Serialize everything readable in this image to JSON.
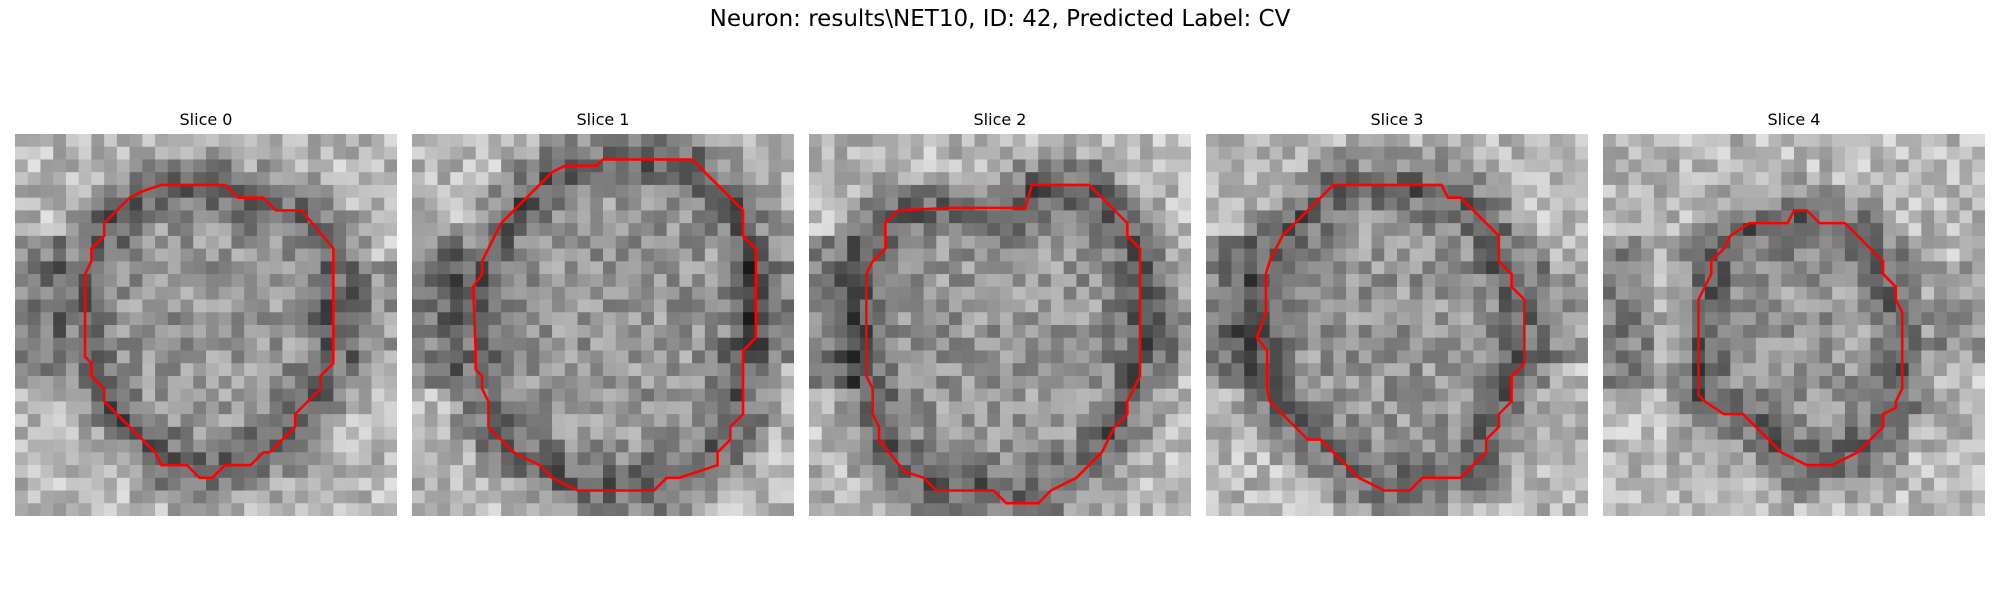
{
  "figure": {
    "title": "Neuron: results\\NET10, ID: 42, Predicted Label: CV"
  },
  "contour_color": "#ff0000",
  "grid_size": 30,
  "panels": [
    {
      "title": "Slice 0",
      "seed": 11,
      "contour": [
        [
          11.5,
          4
        ],
        [
          16.5,
          4
        ],
        [
          17.5,
          5
        ],
        [
          19.5,
          5
        ],
        [
          20.5,
          6
        ],
        [
          22.5,
          6
        ],
        [
          25,
          9
        ],
        [
          25,
          18
        ],
        [
          24,
          19
        ],
        [
          24,
          20
        ],
        [
          22,
          22
        ],
        [
          22,
          23
        ],
        [
          20,
          25
        ],
        [
          19.5,
          25
        ],
        [
          18.5,
          26
        ],
        [
          16.5,
          26
        ],
        [
          15.5,
          27
        ],
        [
          14.5,
          27
        ],
        [
          13.5,
          26
        ],
        [
          11.5,
          26
        ],
        [
          11,
          25
        ],
        [
          10,
          24
        ],
        [
          9,
          23
        ],
        [
          8,
          22
        ],
        [
          7,
          21
        ],
        [
          7,
          20
        ],
        [
          6,
          19
        ],
        [
          6,
          18
        ],
        [
          5.5,
          17.5
        ],
        [
          5.5,
          15
        ],
        [
          5.5,
          11
        ],
        [
          6,
          10
        ],
        [
          6,
          9
        ],
        [
          7,
          8
        ],
        [
          7,
          7
        ],
        [
          8,
          6
        ],
        [
          9,
          5
        ],
        [
          10,
          4.5
        ]
      ]
    },
    {
      "title": "Slice 1",
      "seed": 23,
      "contour": [
        [
          15,
          2
        ],
        [
          22,
          2
        ],
        [
          25,
          5
        ],
        [
          26,
          6
        ],
        [
          26,
          8
        ],
        [
          27,
          9
        ],
        [
          27,
          16
        ],
        [
          26,
          17
        ],
        [
          26,
          22
        ],
        [
          25,
          23
        ],
        [
          25,
          24
        ],
        [
          24,
          25
        ],
        [
          24,
          26
        ],
        [
          21,
          27
        ],
        [
          20,
          27
        ],
        [
          19,
          28
        ],
        [
          13,
          28
        ],
        [
          11,
          27
        ],
        [
          10,
          26
        ],
        [
          8,
          25
        ],
        [
          7,
          24
        ],
        [
          6,
          23
        ],
        [
          6,
          21
        ],
        [
          5.5,
          20
        ],
        [
          5.5,
          19
        ],
        [
          5,
          18.5
        ],
        [
          5,
          17
        ],
        [
          4.8,
          12
        ],
        [
          5.5,
          11
        ],
        [
          5.5,
          10
        ],
        [
          6,
          9
        ],
        [
          7,
          7
        ],
        [
          8,
          6
        ],
        [
          9,
          5
        ],
        [
          10,
          4
        ],
        [
          11,
          3
        ],
        [
          12,
          2.5
        ],
        [
          14.5,
          2.5
        ]
      ]
    },
    {
      "title": "Slice 2",
      "seed": 37,
      "contour": [
        [
          7,
          6
        ],
        [
          11,
          5.8
        ],
        [
          17,
          5.8
        ],
        [
          17.5,
          4
        ],
        [
          22,
          4
        ],
        [
          23,
          5
        ],
        [
          24,
          6
        ],
        [
          25,
          7
        ],
        [
          25,
          8
        ],
        [
          26,
          9
        ],
        [
          26,
          15
        ],
        [
          26,
          19
        ],
        [
          25,
          21
        ],
        [
          25,
          22
        ],
        [
          24,
          23
        ],
        [
          23,
          25
        ],
        [
          21,
          27
        ],
        [
          19,
          28
        ],
        [
          18,
          29
        ],
        [
          15.5,
          29
        ],
        [
          14.5,
          28
        ],
        [
          10,
          28
        ],
        [
          9,
          27
        ],
        [
          7.5,
          26.5
        ],
        [
          5.5,
          24
        ],
        [
          5.5,
          23
        ],
        [
          5,
          22
        ],
        [
          5,
          20
        ],
        [
          4.5,
          19
        ],
        [
          4.5,
          15
        ],
        [
          4.5,
          11
        ],
        [
          5,
          10
        ],
        [
          6,
          9
        ],
        [
          6,
          8
        ],
        [
          6,
          7
        ]
      ]
    },
    {
      "title": "Slice 3",
      "seed": 53,
      "contour": [
        [
          10,
          4
        ],
        [
          18.5,
          4
        ],
        [
          19,
          5
        ],
        [
          20,
          5
        ],
        [
          22,
          7
        ],
        [
          23,
          8
        ],
        [
          23,
          10
        ],
        [
          24,
          11
        ],
        [
          24,
          12
        ],
        [
          25,
          13
        ],
        [
          25,
          18
        ],
        [
          24,
          19
        ],
        [
          24,
          21
        ],
        [
          23,
          22
        ],
        [
          23,
          23
        ],
        [
          22,
          24
        ],
        [
          22,
          25
        ],
        [
          21,
          26
        ],
        [
          20,
          27
        ],
        [
          17,
          27
        ],
        [
          16,
          28
        ],
        [
          14,
          28
        ],
        [
          13,
          27.5
        ],
        [
          12,
          27
        ],
        [
          11,
          26
        ],
        [
          10,
          25
        ],
        [
          9,
          24
        ],
        [
          8,
          24
        ],
        [
          7,
          23
        ],
        [
          5,
          21
        ],
        [
          4.8,
          20
        ],
        [
          4.8,
          17
        ],
        [
          4,
          16
        ],
        [
          4.7,
          14
        ],
        [
          4.7,
          11
        ],
        [
          5,
          10
        ],
        [
          6,
          8
        ],
        [
          7,
          7
        ],
        [
          8,
          6
        ],
        [
          9,
          5
        ]
      ]
    },
    {
      "title": "Slice 4",
      "seed": 71,
      "contour": [
        [
          15,
          6
        ],
        [
          16,
          6
        ],
        [
          17,
          7
        ],
        [
          18,
          7
        ],
        [
          19,
          7
        ],
        [
          22,
          10
        ],
        [
          22,
          11
        ],
        [
          23,
          12
        ],
        [
          23,
          13
        ],
        [
          23.5,
          14
        ],
        [
          23.5,
          20
        ],
        [
          23,
          21
        ],
        [
          23,
          21.5
        ],
        [
          22,
          22
        ],
        [
          22,
          23
        ],
        [
          21,
          24
        ],
        [
          20,
          25
        ],
        [
          19,
          25.5
        ],
        [
          18,
          26
        ],
        [
          16,
          26
        ],
        [
          15,
          25.5
        ],
        [
          14,
          25
        ],
        [
          13,
          24
        ],
        [
          12,
          23
        ],
        [
          11,
          22
        ],
        [
          9.5,
          22
        ],
        [
          8,
          21
        ],
        [
          7.5,
          20.5
        ],
        [
          7.5,
          13
        ],
        [
          8,
          12
        ],
        [
          8.5,
          11
        ],
        [
          8.5,
          10
        ],
        [
          9.5,
          9
        ],
        [
          10,
          8
        ],
        [
          11.5,
          7
        ],
        [
          14.5,
          7
        ]
      ]
    }
  ]
}
